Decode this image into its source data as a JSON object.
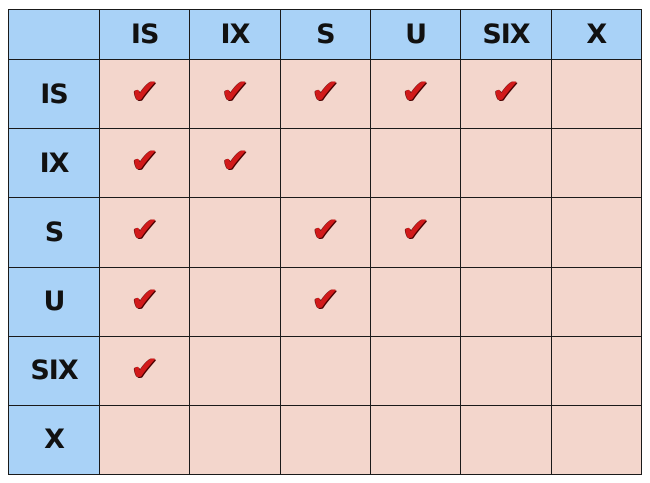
{
  "columns": [
    "IS",
    "IX",
    "S",
    "U",
    "SIX",
    "X"
  ],
  "rows": [
    {
      "label": "IS",
      "compatible": [
        true,
        true,
        true,
        true,
        true,
        false
      ]
    },
    {
      "label": "IX",
      "compatible": [
        true,
        true,
        false,
        false,
        false,
        false
      ]
    },
    {
      "label": "S",
      "compatible": [
        true,
        false,
        true,
        true,
        false,
        false
      ]
    },
    {
      "label": "U",
      "compatible": [
        true,
        false,
        true,
        false,
        false,
        false
      ]
    },
    {
      "label": "SIX",
      "compatible": [
        true,
        false,
        false,
        false,
        false,
        false
      ]
    },
    {
      "label": "X",
      "compatible": [
        false,
        false,
        false,
        false,
        false,
        false
      ]
    }
  ],
  "check_icon": "checkmark-icon",
  "colors": {
    "header_bg": "#a9d2f7",
    "cell_bg": "#f3d6cc",
    "check": "#d11a1a",
    "grid_line": "#1a1a1a"
  }
}
